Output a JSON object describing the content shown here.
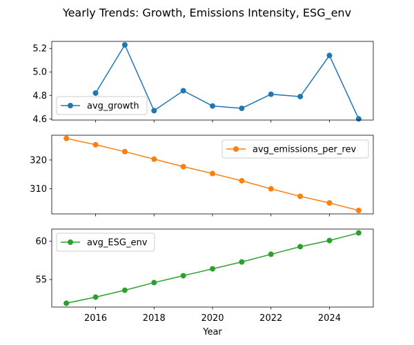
{
  "figure": {
    "title": "Yearly Trends: Growth, Emissions Intensity, ESG_env",
    "xlabel": "Year"
  },
  "chart_data": [
    {
      "type": "line",
      "x": [
        2016,
        2017,
        2018,
        2019,
        2020,
        2021,
        2022,
        2023,
        2024,
        2025
      ],
      "series": [
        {
          "name": "avg_growth",
          "values": [
            4.82,
            5.23,
            4.67,
            4.84,
            4.71,
            4.69,
            4.81,
            4.79,
            5.14,
            4.6
          ],
          "color": "#1f77b4"
        }
      ],
      "xlim": [
        2014.5,
        2025.5
      ],
      "ylim": [
        4.59,
        5.26
      ],
      "yticks": [
        4.6,
        4.8,
        5.0,
        5.2
      ],
      "ytick_labels": [
        "4.6",
        "4.8",
        "5.0",
        "5.2"
      ],
      "legend_loc": "lower-left",
      "grid": false
    },
    {
      "type": "line",
      "x": [
        2015,
        2016,
        2017,
        2018,
        2019,
        2020,
        2021,
        2022,
        2023,
        2024,
        2025
      ],
      "series": [
        {
          "name": "avg_emissions_per_rev",
          "values": [
            327.5,
            325.3,
            322.9,
            320.3,
            317.7,
            315.3,
            312.8,
            310.0,
            307.4,
            305.1,
            302.5
          ],
          "color": "#ff7f0e"
        }
      ],
      "xlim": [
        2014.5,
        2025.5
      ],
      "ylim": [
        301.3,
        328.6
      ],
      "yticks": [
        310,
        320
      ],
      "ytick_labels": [
        "310",
        "320"
      ],
      "legend_loc": "upper-right",
      "grid": false
    },
    {
      "type": "line",
      "x": [
        2015,
        2016,
        2017,
        2018,
        2019,
        2020,
        2021,
        2022,
        2023,
        2024,
        2025
      ],
      "series": [
        {
          "name": "avg_ESG_env",
          "values": [
            51.9,
            52.7,
            53.6,
            54.6,
            55.5,
            56.4,
            57.3,
            58.3,
            59.3,
            60.1,
            61.1
          ],
          "color": "#2ca02c"
        }
      ],
      "xlim": [
        2014.5,
        2025.5
      ],
      "ylim": [
        51.4,
        61.6
      ],
      "yticks": [
        55,
        60
      ],
      "ytick_labels": [
        "55",
        "60"
      ],
      "xticks": [
        2016,
        2018,
        2020,
        2022,
        2024
      ],
      "xtick_labels": [
        "2016",
        "2018",
        "2020",
        "2022",
        "2024"
      ],
      "legend_loc": "upper-left",
      "grid": false
    }
  ]
}
